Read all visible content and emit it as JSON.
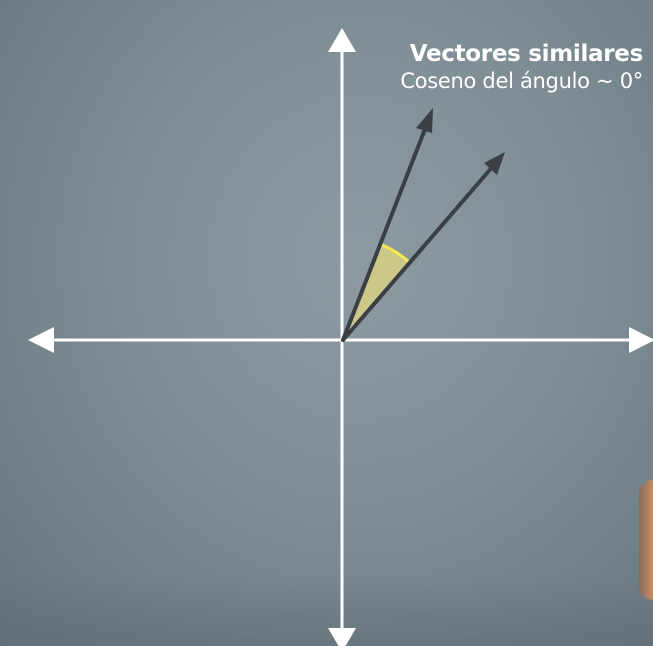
{
  "title": "Vectores similares",
  "subtitle": "Coseno del ángulo ~ 0°",
  "colors": {
    "axis": "#ffffff",
    "vector": "#3a3f44",
    "angle_fill": "#d8cf86",
    "angle_arc": "#f2e94a"
  }
}
